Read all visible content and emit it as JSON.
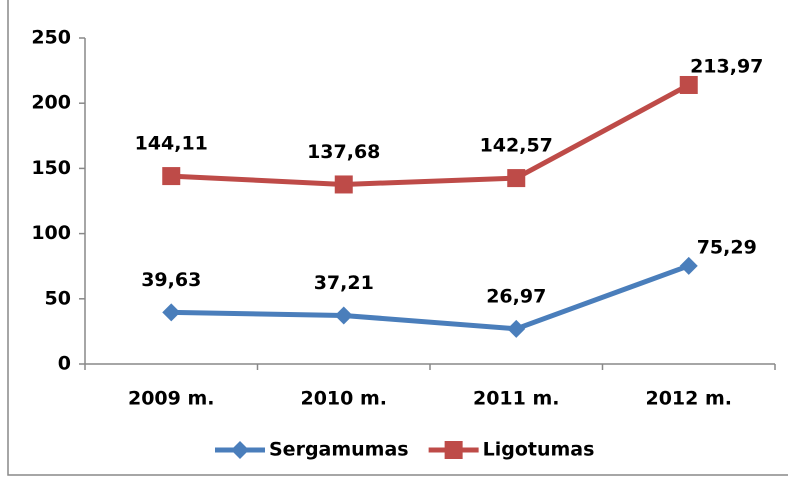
{
  "chart_data": {
    "type": "line",
    "categories": [
      "2009 m.",
      "2010 m.",
      "2011 m.",
      "2012 m."
    ],
    "series": [
      {
        "name": "Sergamumas",
        "color": "#4a7ebb",
        "marker": "diamond",
        "values": [
          39.63,
          37.21,
          26.97,
          75.29
        ],
        "value_labels": [
          "39,63",
          "37,21",
          "26,97",
          "75,29"
        ]
      },
      {
        "name": "Ligotumas",
        "color": "#be4b48",
        "marker": "square",
        "values": [
          144.11,
          137.68,
          142.57,
          213.97
        ],
        "value_labels": [
          "144,11",
          "137,68",
          "142,57",
          "213,97"
        ]
      }
    ],
    "ylim": [
      0,
      250
    ],
    "yticks": [
      0,
      50,
      100,
      150,
      200,
      250
    ],
    "grid": false,
    "legend": "bottom"
  }
}
